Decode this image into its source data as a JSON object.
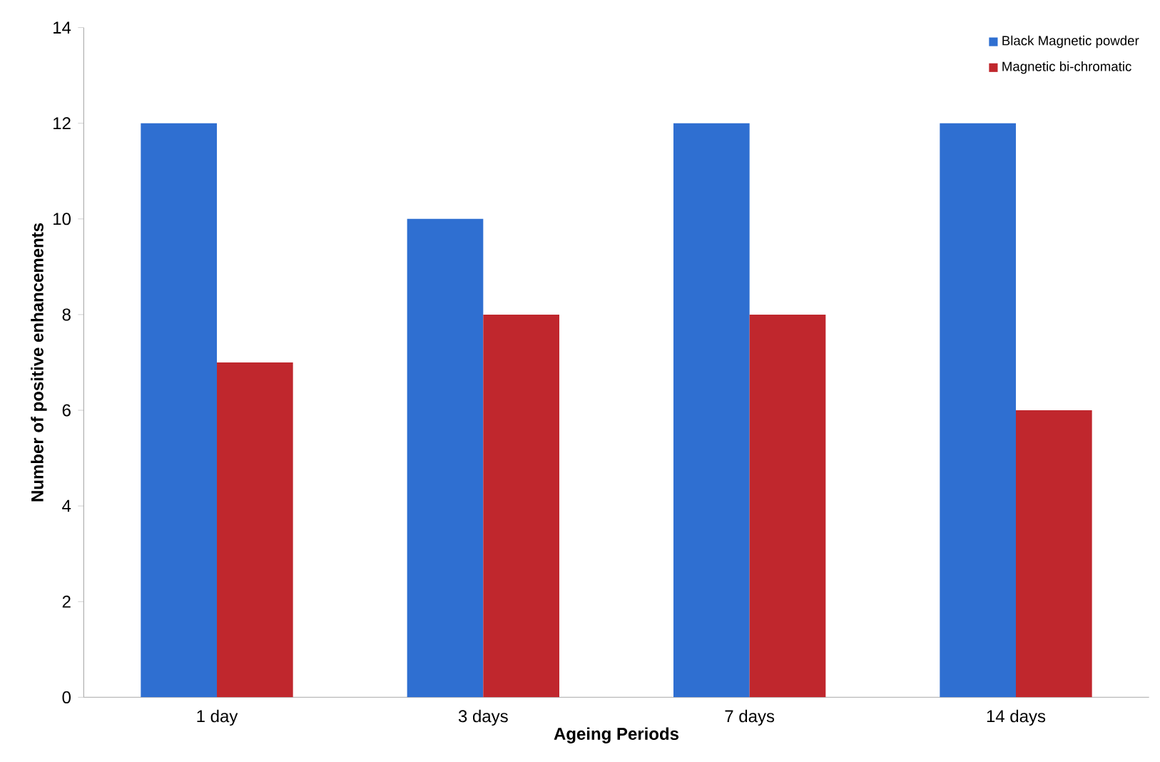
{
  "chart_data": {
    "type": "bar",
    "xlabel": "Ageing Periods",
    "ylabel": "Number of positive enhancements",
    "categories": [
      "1 day",
      "3 days",
      "7 days",
      "14 days"
    ],
    "series": [
      {
        "name": "Black Magnetic powder",
        "color": "#2f6fd1",
        "values": [
          12,
          10,
          12,
          12
        ]
      },
      {
        "name": "Magnetic bi-chromatic",
        "color": "#c0272d",
        "values": [
          7,
          8,
          8,
          6
        ]
      }
    ],
    "ylim": [
      0,
      14
    ],
    "yticks": [
      0,
      2,
      4,
      6,
      8,
      10,
      12,
      14
    ],
    "grid": false,
    "legend": "top right"
  }
}
